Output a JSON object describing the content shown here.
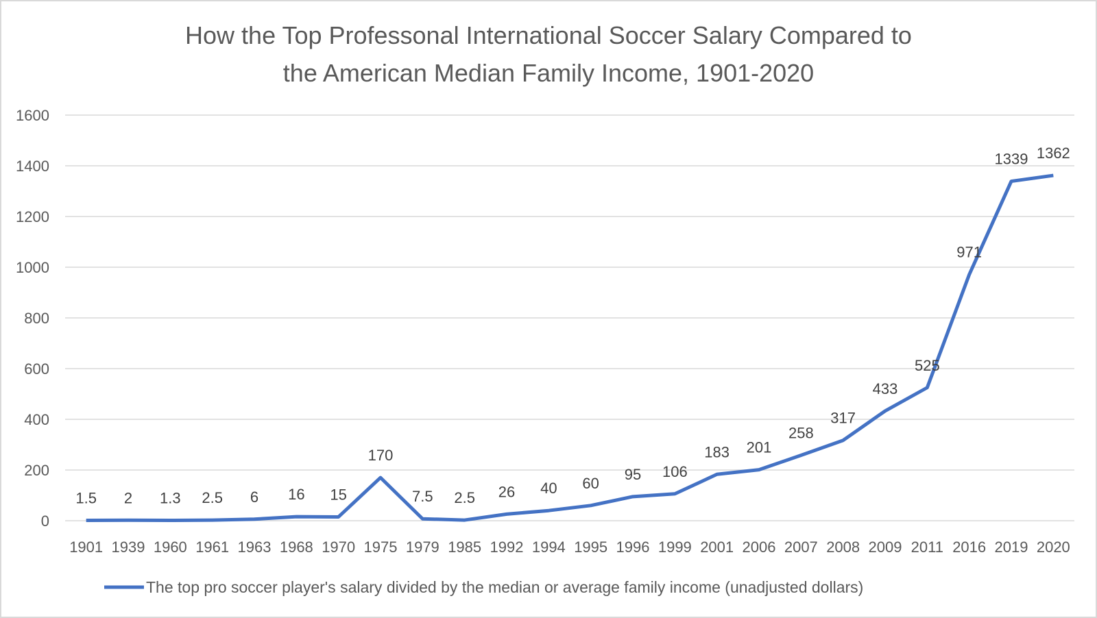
{
  "chart_data": {
    "type": "line",
    "title": [
      "How the Top Professonal International Soccer Salary Compared to",
      "the American Median Family Income, 1901-2020"
    ],
    "categories": [
      "1901",
      "1939",
      "1960",
      "1961",
      "1963",
      "1968",
      "1970",
      "1975",
      "1979",
      "1985",
      "1992",
      "1994",
      "1995",
      "1996",
      "1999",
      "2001",
      "2006",
      "2007",
      "2008",
      "2009",
      "2011",
      "2016",
      "2019",
      "2020"
    ],
    "series": [
      {
        "name": "The top pro soccer player's salary divided by the median or average family income (unadjusted dollars)",
        "values": [
          1.5,
          2,
          1.3,
          2.5,
          6,
          16,
          15,
          170,
          7.5,
          2.5,
          26,
          40,
          60,
          95,
          106,
          183,
          201,
          258,
          317,
          433,
          525,
          971,
          1339,
          1362
        ],
        "labels": [
          "1.5",
          "2",
          "1.3",
          "2.5",
          "6",
          "16",
          "15",
          "170",
          "7.5",
          "2.5",
          "26",
          "40",
          "60",
          "95",
          "106",
          "183",
          "201",
          "258",
          "317",
          "433",
          "525",
          "971",
          "1339",
          "1362"
        ],
        "color": "#4472c4"
      }
    ],
    "ylim": [
      0,
      1600
    ],
    "yticks": [
      "0",
      "200",
      "400",
      "600",
      "800",
      "1000",
      "1200",
      "1400",
      "1600"
    ],
    "grid": true,
    "legend": "bottom",
    "xlabel": "",
    "ylabel": ""
  }
}
